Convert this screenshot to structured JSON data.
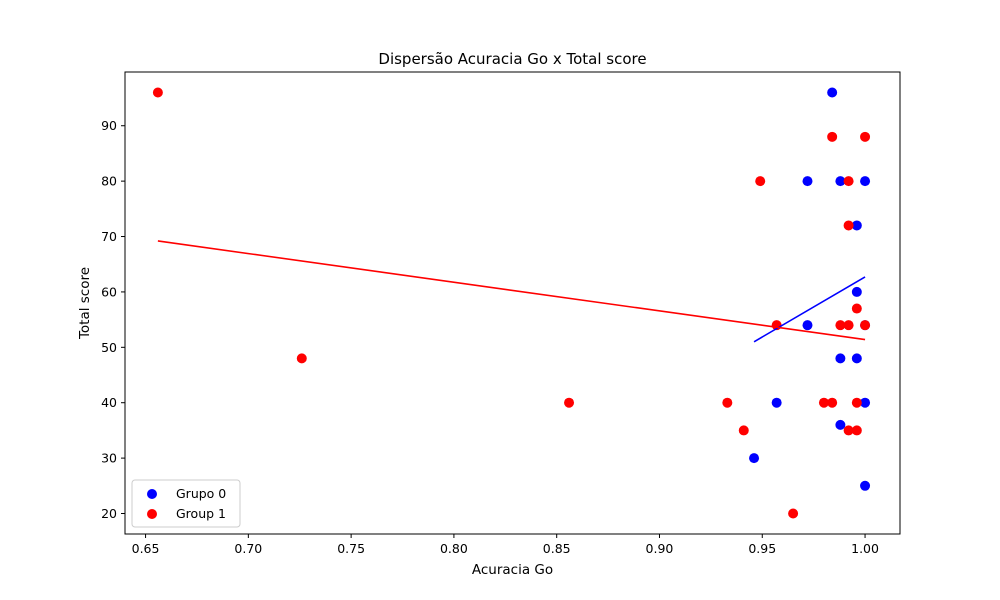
{
  "chart_data": {
    "type": "scatter",
    "title": "Dispersão Acuracia Go x Total score",
    "xlabel": "Acuracia Go",
    "ylabel": "Total score",
    "xlim": [
      0.64,
      1.017
    ],
    "ylim": [
      16.3,
      99.7
    ],
    "xticks": [
      0.65,
      0.7,
      0.75,
      0.8,
      0.85,
      0.9,
      0.95,
      1.0
    ],
    "xtick_labels": [
      "0.65",
      "0.70",
      "0.75",
      "0.80",
      "0.85",
      "0.90",
      "0.95",
      "1.00"
    ],
    "yticks": [
      20,
      30,
      40,
      50,
      60,
      70,
      80,
      90
    ],
    "ytick_labels": [
      "20",
      "30",
      "40",
      "50",
      "60",
      "70",
      "80",
      "90"
    ],
    "grid": false,
    "legend_position": "lower-left",
    "series": [
      {
        "name": "Grupo 0",
        "color": "#0000ff",
        "points": [
          [
            0.984,
            96
          ],
          [
            0.972,
            80
          ],
          [
            0.988,
            80
          ],
          [
            1.0,
            80
          ],
          [
            0.996,
            72
          ],
          [
            0.996,
            60
          ],
          [
            0.972,
            54
          ],
          [
            1.0,
            54
          ],
          [
            0.988,
            48
          ],
          [
            0.996,
            48
          ],
          [
            0.957,
            40
          ],
          [
            1.0,
            40
          ],
          [
            0.988,
            36
          ],
          [
            0.946,
            30
          ],
          [
            1.0,
            25
          ]
        ],
        "trendline": [
          [
            0.946,
            51.0
          ],
          [
            1.0,
            62.7
          ]
        ]
      },
      {
        "name": "Group 1",
        "color": "#ff0000",
        "points": [
          [
            0.656,
            96
          ],
          [
            0.984,
            88
          ],
          [
            1.0,
            88
          ],
          [
            0.949,
            80
          ],
          [
            0.992,
            80
          ],
          [
            0.992,
            72
          ],
          [
            0.996,
            57
          ],
          [
            0.957,
            54
          ],
          [
            0.988,
            54
          ],
          [
            0.992,
            54
          ],
          [
            1.0,
            54
          ],
          [
            0.726,
            48
          ],
          [
            0.856,
            40
          ],
          [
            0.933,
            40
          ],
          [
            0.98,
            40
          ],
          [
            0.984,
            40
          ],
          [
            0.996,
            40
          ],
          [
            0.941,
            35
          ],
          [
            0.992,
            35
          ],
          [
            0.996,
            35
          ],
          [
            0.965,
            20
          ]
        ],
        "trendline": [
          [
            0.656,
            69.2
          ],
          [
            1.0,
            51.4
          ]
        ]
      }
    ]
  }
}
